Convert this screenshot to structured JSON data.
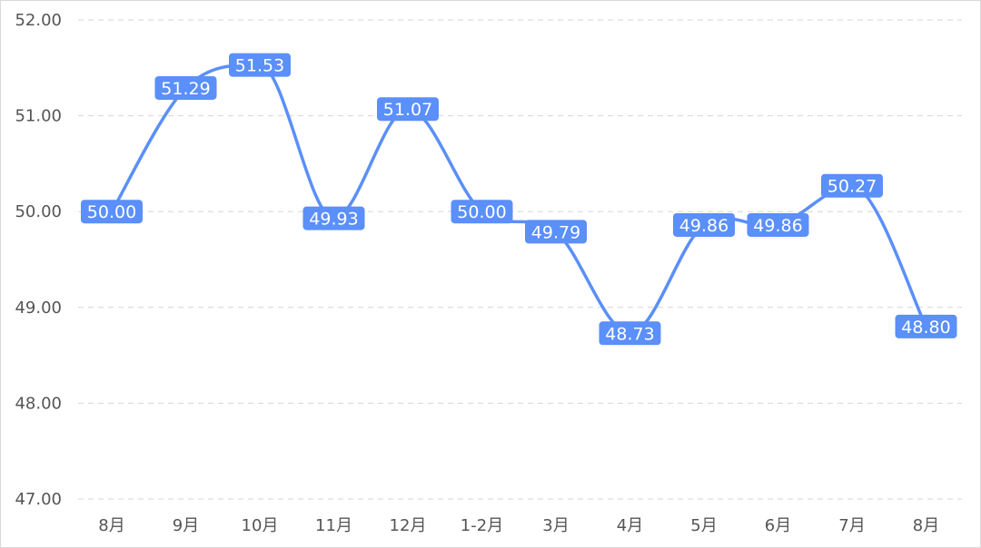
{
  "chart_data": {
    "type": "line",
    "categories": [
      "8月",
      "9月",
      "10月",
      "11月",
      "12月",
      "1-2月",
      "3月",
      "4月",
      "5月",
      "6月",
      "7月",
      "8月"
    ],
    "series": [
      {
        "values": [
          50.0,
          51.29,
          51.53,
          49.93,
          51.07,
          50.0,
          49.79,
          48.73,
          49.86,
          49.86,
          50.27,
          48.8
        ],
        "labels": [
          "50.00",
          "51.29",
          "51.53",
          "49.93",
          "51.07",
          "50.00",
          "49.79",
          "48.73",
          "49.86",
          "49.86",
          "50.27",
          "48.80"
        ],
        "color": "#5b8ff9"
      }
    ],
    "title": "",
    "xlabel": "",
    "ylabel": "",
    "ylim": [
      47,
      52
    ],
    "yticks": [
      "47.00",
      "48.00",
      "49.00",
      "50.00",
      "51.00",
      "52.00"
    ],
    "grid": true,
    "smooth": true,
    "data_labels": true
  }
}
